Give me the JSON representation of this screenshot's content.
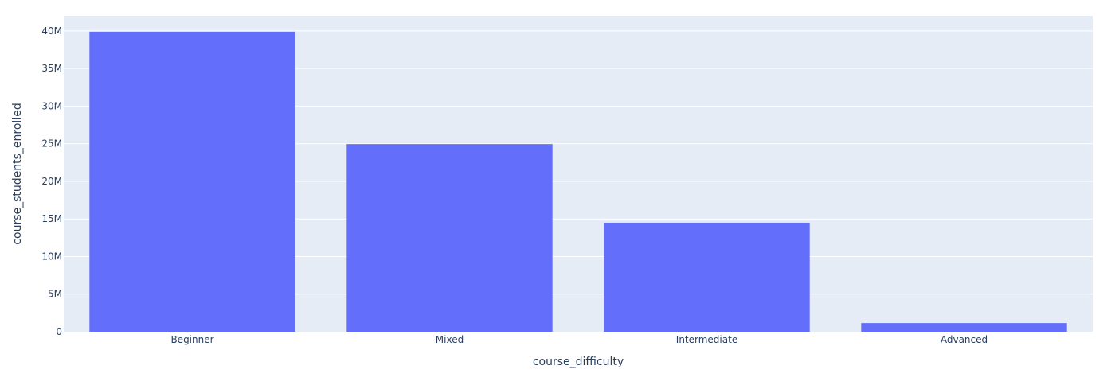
{
  "chart_data": {
    "type": "bar",
    "title": "",
    "xlabel": "course_difficulty",
    "ylabel": "course_students_enrolled",
    "categories": [
      "Beginner",
      "Mixed",
      "Intermediate",
      "Advanced"
    ],
    "values": [
      39900000,
      24950000,
      14500000,
      1150000
    ],
    "ylim": [
      0,
      42000000
    ],
    "yticks": [
      0,
      5000000,
      10000000,
      15000000,
      20000000,
      25000000,
      30000000,
      35000000,
      40000000
    ],
    "ytick_labels": [
      "0",
      "5M",
      "10M",
      "15M",
      "20M",
      "25M",
      "30M",
      "35M",
      "40M"
    ],
    "grid": true,
    "legend": "none",
    "colors": {
      "bar": "#636efa",
      "plot_bg": "#e5ecf6",
      "grid": "#ffffff",
      "text": "#2a3f5f"
    }
  }
}
